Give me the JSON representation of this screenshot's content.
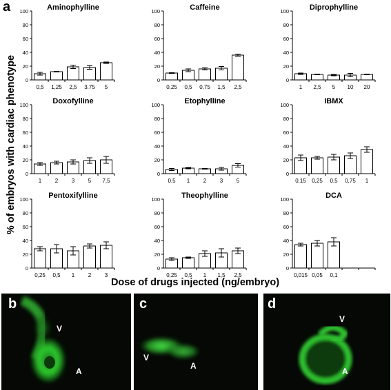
{
  "figure": {
    "panel_a_letter": "a",
    "y_axis_label": "% of embryos with cardiac phenotype",
    "x_axis_label": "Dose of drugs injected (ng/embryo)",
    "y_ticks": [
      "0",
      "20",
      "40",
      "60",
      "80",
      "100"
    ]
  },
  "chart_data": [
    {
      "type": "bar",
      "title": "Aminophylline",
      "categories": [
        "0,5",
        "1,25",
        "2,5",
        "3.75",
        "5"
      ],
      "values": [
        9,
        12,
        19,
        18,
        25
      ],
      "errors": [
        2,
        0.5,
        2.5,
        2.5,
        1
      ],
      "ylim": [
        0,
        100
      ]
    },
    {
      "type": "bar",
      "title": "Caffeine",
      "categories": [
        "0,25",
        "0,5",
        "0,75",
        "1,5",
        "2,5"
      ],
      "values": [
        10,
        14,
        16,
        17,
        36
      ],
      "errors": [
        0.5,
        2,
        1.5,
        2.5,
        1.5
      ],
      "ylim": [
        0,
        100
      ]
    },
    {
      "type": "bar",
      "title": "Diprophylline",
      "categories": [
        "1",
        "2,5",
        "5",
        "10",
        "20"
      ],
      "values": [
        9,
        8,
        7,
        7,
        8
      ],
      "errors": [
        1,
        0.5,
        1,
        2.5,
        0.5
      ],
      "ylim": [
        0,
        100
      ]
    },
    {
      "type": "bar",
      "title": "Doxofylline",
      "categories": [
        "1",
        "2",
        "3",
        "5",
        "7,5"
      ],
      "values": [
        14,
        16,
        17,
        19,
        20
      ],
      "errors": [
        2,
        2,
        3,
        4,
        5
      ],
      "ylim": [
        0,
        100
      ]
    },
    {
      "type": "bar",
      "title": "Etophylline",
      "categories": [
        "0.5",
        "1",
        "2",
        "3",
        "5"
      ],
      "values": [
        6,
        8,
        7,
        7,
        12
      ],
      "errors": [
        1.5,
        1,
        0.5,
        2,
        2.5
      ],
      "ylim": [
        0,
        100
      ]
    },
    {
      "type": "bar",
      "title": "IBMX",
      "categories": [
        "0,15",
        "0,25",
        "0,5",
        "0,75",
        "1"
      ],
      "values": [
        23,
        23,
        24,
        26,
        35
      ],
      "errors": [
        4,
        2,
        4,
        4,
        4
      ],
      "ylim": [
        0,
        100
      ]
    },
    {
      "type": "bar",
      "title": "Pentoxifylline",
      "categories": [
        "0,25",
        "0,5",
        "1",
        "2",
        "3"
      ],
      "values": [
        28,
        28,
        25,
        32,
        33
      ],
      "errors": [
        3,
        6,
        6,
        3,
        5
      ],
      "ylim": [
        0,
        100
      ]
    },
    {
      "type": "bar",
      "title": "Theophylline",
      "categories": [
        "0,25",
        "0,5",
        "1",
        "1,5",
        "2,5"
      ],
      "values": [
        13,
        15,
        21,
        22,
        25
      ],
      "errors": [
        2,
        1,
        4,
        6,
        4
      ],
      "ylim": [
        0,
        100
      ]
    },
    {
      "type": "bar",
      "title": "DCA",
      "categories": [
        "0,015",
        "0,05",
        "0,1",
        "",
        ""
      ],
      "values": [
        34,
        36,
        38,
        null,
        null
      ],
      "errors": [
        2,
        4,
        6,
        null,
        null
      ],
      "ylim": [
        0,
        100
      ]
    }
  ],
  "micrographs": [
    {
      "letter": "b",
      "labels": [
        "V",
        "A"
      ]
    },
    {
      "letter": "c",
      "labels": [
        "V",
        "A"
      ]
    },
    {
      "letter": "d",
      "labels": [
        "V",
        "A"
      ]
    }
  ],
  "colors": {
    "bar_fill": "#ffffff",
    "bar_stroke": "#000000",
    "micrograph_background": "#050805",
    "fluorescence": "#27c427"
  }
}
